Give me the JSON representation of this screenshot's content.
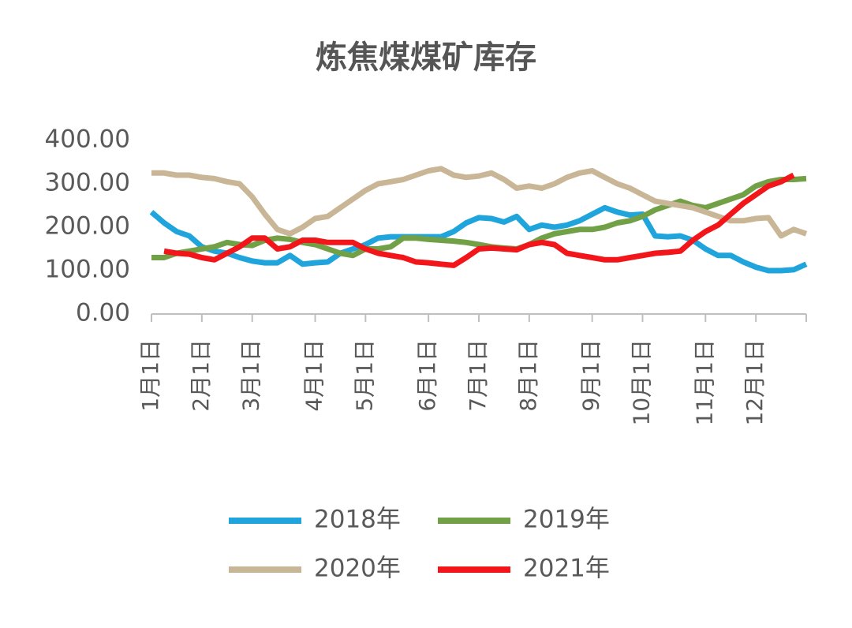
{
  "chart_data": {
    "type": "line",
    "title": "炼焦煤煤矿库存",
    "categories": [
      "1月1日",
      null,
      null,
      null,
      "2月1日",
      null,
      null,
      null,
      "3月1日",
      null,
      null,
      null,
      null,
      "4月1日",
      null,
      null,
      null,
      "5月1日",
      null,
      null,
      null,
      null,
      "6月1日",
      null,
      null,
      null,
      "7月1日",
      null,
      null,
      null,
      "8月1日",
      null,
      null,
      null,
      null,
      "9月1日",
      null,
      null,
      null,
      "10月1日",
      null,
      null,
      null,
      null,
      "11月1日",
      null,
      null,
      null,
      "12月1日",
      null,
      null,
      null,
      null
    ],
    "series": [
      {
        "name": "2018年",
        "color": "#1fa5dc",
        "values": [
          235,
          210,
          190,
          180,
          155,
          145,
          140,
          130,
          122,
          118,
          118,
          135,
          115,
          118,
          120,
          140,
          150,
          160,
          175,
          178,
          178,
          178,
          178,
          178,
          190,
          210,
          222,
          220,
          212,
          225,
          195,
          205,
          200,
          205,
          215,
          230,
          245,
          235,
          228,
          230,
          180,
          178,
          180,
          170,
          150,
          135,
          135,
          120,
          108,
          100,
          100,
          102,
          115
        ]
      },
      {
        "name": "2019年",
        "color": "#72a046",
        "values": [
          130,
          130,
          140,
          145,
          150,
          155,
          165,
          160,
          158,
          170,
          175,
          172,
          165,
          160,
          150,
          140,
          135,
          150,
          150,
          155,
          175,
          175,
          172,
          170,
          168,
          165,
          160,
          155,
          152,
          150,
          160,
          175,
          185,
          190,
          195,
          195,
          200,
          210,
          215,
          225,
          240,
          250,
          260,
          250,
          245,
          255,
          265,
          275,
          295,
          305,
          310,
          310,
          312
        ]
      },
      {
        "name": "2020年",
        "color": "#c9b697",
        "values": [
          325,
          325,
          320,
          320,
          315,
          312,
          305,
          300,
          270,
          230,
          195,
          185,
          200,
          220,
          225,
          245,
          265,
          285,
          300,
          305,
          310,
          320,
          330,
          335,
          320,
          315,
          318,
          325,
          310,
          290,
          295,
          290,
          300,
          315,
          325,
          330,
          315,
          300,
          290,
          275,
          260,
          255,
          250,
          245,
          235,
          225,
          215,
          215,
          220,
          222,
          180,
          195,
          185
        ]
      },
      {
        "name": "2021年",
        "color": "#f2161b",
        "values": [
          null,
          145,
          140,
          138,
          130,
          125,
          140,
          155,
          175,
          175,
          150,
          155,
          170,
          170,
          165,
          165,
          165,
          150,
          140,
          135,
          130,
          120,
          118,
          115,
          112,
          130,
          150,
          152,
          150,
          148,
          160,
          165,
          160,
          140,
          135,
          130,
          125,
          125,
          130,
          135,
          140,
          142,
          145,
          170,
          190,
          205,
          230,
          255,
          275,
          295,
          305,
          320,
          null
        ]
      }
    ],
    "ylim": [
      0,
      400
    ],
    "yticks": [
      {
        "value": 0,
        "label": "0.00"
      },
      {
        "value": 100,
        "label": "100.00"
      },
      {
        "value": 200,
        "label": "200.00"
      },
      {
        "value": 300,
        "label": "300.00"
      },
      {
        "value": 400,
        "label": "400.00"
      }
    ]
  }
}
